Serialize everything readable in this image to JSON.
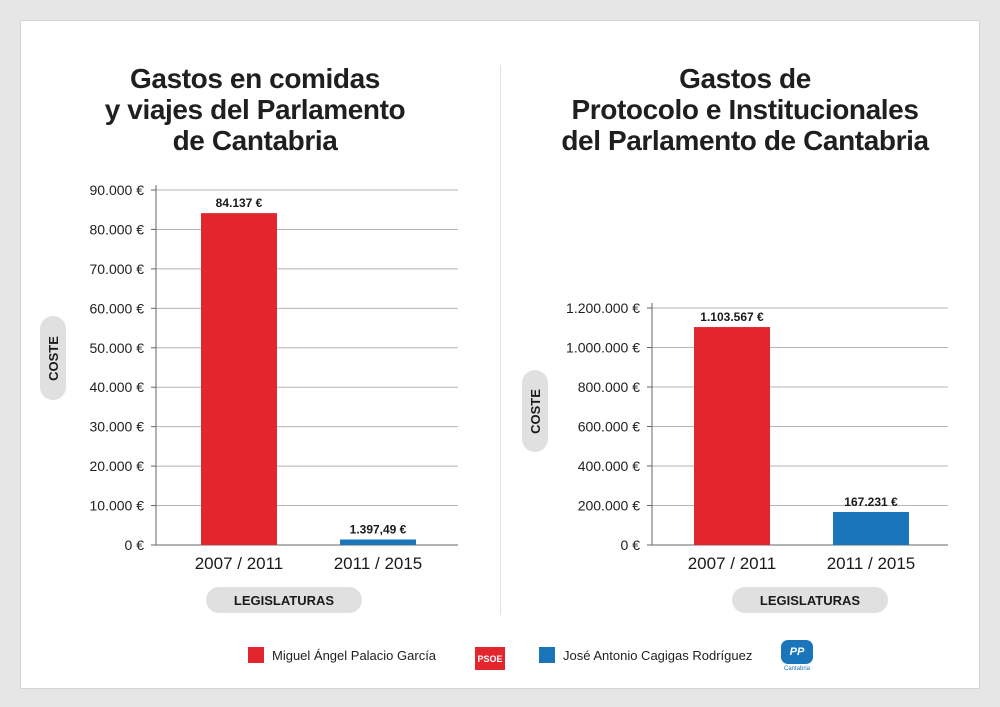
{
  "chart_data": [
    {
      "type": "bar",
      "title": "Gastos en comidas\ny viajes del Parlamento\nde Cantabria",
      "categories": [
        "2007 / 2011",
        "2011 / 2015"
      ],
      "values": [
        84137,
        1397.49
      ],
      "value_labels": [
        "84.137 €",
        "1.397,49 €"
      ],
      "colors": [
        "#e3262d",
        "#1b75bb"
      ],
      "ylabel": "COSTE",
      "xlabel": "LEGISLATURAS",
      "ylim": [
        0,
        90000
      ],
      "yticks": [
        0,
        10000,
        20000,
        30000,
        40000,
        50000,
        60000,
        70000,
        80000,
        90000
      ],
      "ytick_labels": [
        "0 €",
        "10.000 €",
        "20.000 €",
        "30.000 €",
        "40.000 €",
        "50.000 €",
        "60.000 €",
        "70.000 €",
        "80.000 €",
        "90.000 €"
      ],
      "grid": true
    },
    {
      "type": "bar",
      "title": "Gastos de\nProtocolo e Institucionales\ndel Parlamento de Cantabria",
      "categories": [
        "2007 / 2011",
        "2011 / 2015"
      ],
      "values": [
        1103567,
        167231
      ],
      "value_labels": [
        "1.103.567 €",
        "167.231 €"
      ],
      "colors": [
        "#e3262d",
        "#1b75bb"
      ],
      "ylabel": "COSTE",
      "xlabel": "LEGISLATURAS",
      "ylim": [
        0,
        1200000
      ],
      "yticks": [
        0,
        200000,
        400000,
        600000,
        800000,
        1000000,
        1200000
      ],
      "ytick_labels": [
        "0 €",
        "200.000 €",
        "400.000 €",
        "600.000 €",
        "800.000 €",
        "1.000.000 €",
        "1.200.000 €"
      ],
      "grid": true
    }
  ],
  "legend": {
    "items": [
      {
        "label": "Miguel Ángel Palacio García",
        "color": "#e3262d",
        "logo": "PSOE"
      },
      {
        "label": "José Antonio Cagigas Rodríguez",
        "color": "#1b75bb",
        "logo": "PP",
        "logo_sub": "Cantabria"
      }
    ]
  }
}
